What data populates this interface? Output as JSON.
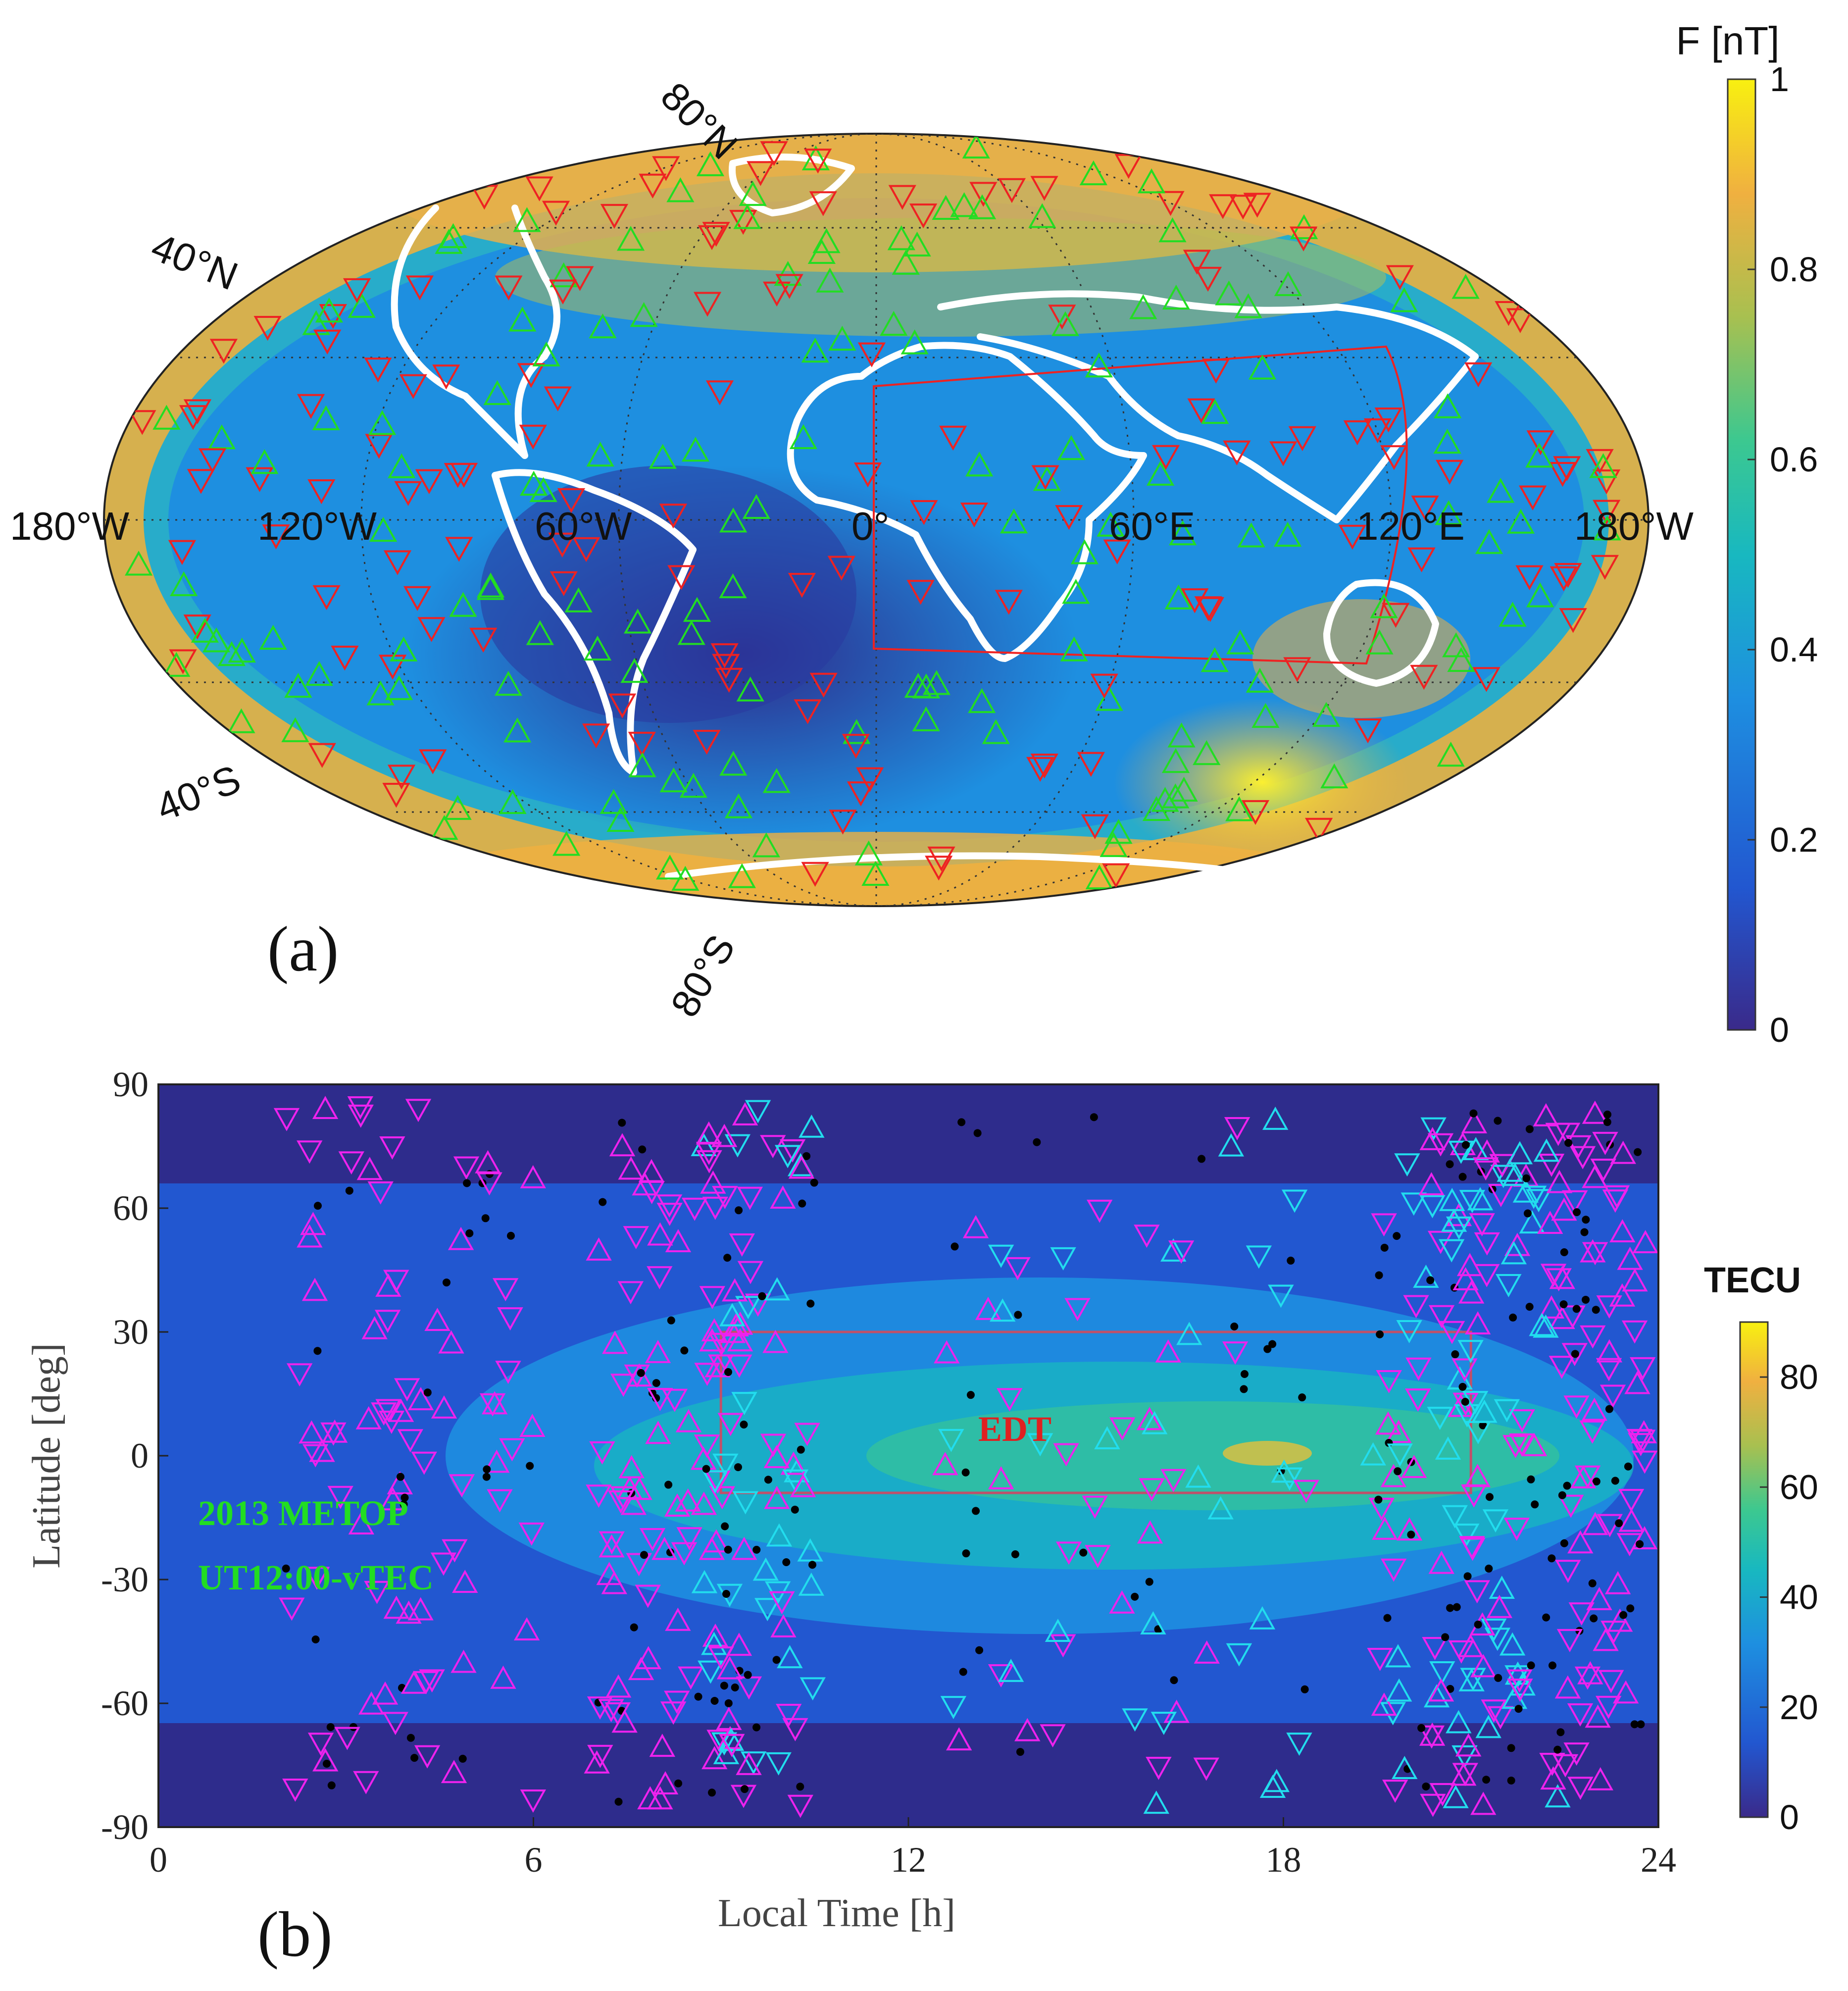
{
  "panel_a": {
    "label": "(a)",
    "graticule_labels": {
      "lat_80N": "80°N",
      "lat_40N": "40°N",
      "lat_40S": "40°S",
      "lat_80S": "80°S",
      "lon_180W_left": "180°W",
      "lon_120W": "120°W",
      "lon_60W": "60°W",
      "lon_0": "0°",
      "lon_60E": "60°E",
      "lon_120E": "120°E",
      "lon_180W_right": "180°W"
    },
    "colorbar": {
      "title": "F [nT]",
      "ticks": [
        "0",
        "0.2",
        "0.4",
        "0.6",
        "0.8",
        "1"
      ],
      "range": [
        0,
        1
      ]
    },
    "markers": {
      "up": {
        "shape": "triangle-up",
        "color": "#22dd22"
      },
      "down": {
        "shape": "triangle-down",
        "color": "#ee2222"
      }
    },
    "colors": {
      "coastline": "#ffffff",
      "box": "#ee2222"
    }
  },
  "chart_data": [
    {
      "type": "scatter",
      "panel": "(b)",
      "title": "",
      "xlabel": "Local Time [h]",
      "ylabel": "Latitude [deg]",
      "xlim": [
        0,
        24
      ],
      "ylim": [
        -90,
        90
      ],
      "x_ticks": [
        "0",
        "6",
        "12",
        "18",
        "24"
      ],
      "y_ticks": [
        "90",
        "60",
        "30",
        "0",
        "-30",
        "-60",
        "-90"
      ],
      "annotations": [
        {
          "text": "EDT",
          "color": "#e02020"
        },
        {
          "text": "2013 METOP",
          "color": "#22dd22"
        },
        {
          "text": "UT12:00-vTEC",
          "color": "#22dd22"
        }
      ],
      "edt_box": {
        "lt_range": [
          9,
          21
        ],
        "lat_range": [
          -9,
          30
        ]
      },
      "colorbar": {
        "title": "TECU",
        "ticks": [
          "0",
          "20",
          "40",
          "60",
          "80"
        ],
        "range": [
          0,
          90
        ]
      },
      "series_colors": {
        "magenta_triangles": "#ee22ee",
        "cyan_triangles": "#22ddee",
        "black_dots": "#000000"
      }
    }
  ]
}
